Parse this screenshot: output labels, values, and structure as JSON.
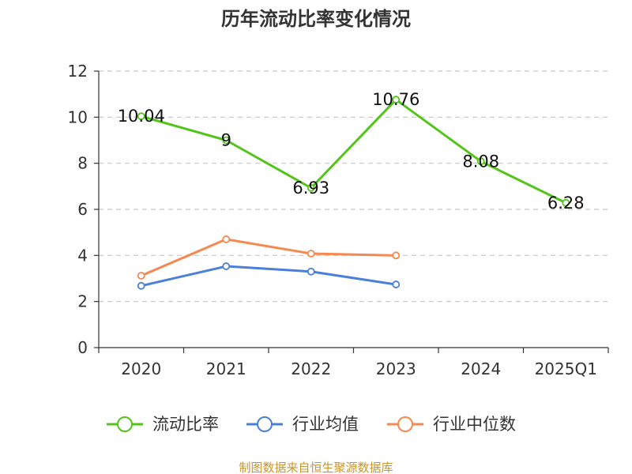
{
  "chart_data": {
    "type": "line",
    "title": "历年流动比率变化情况",
    "categories": [
      "2020",
      "2021",
      "2022",
      "2023",
      "2024",
      "2025Q1"
    ],
    "ylim": [
      0,
      12
    ],
    "yticks": [
      0,
      2,
      4,
      6,
      8,
      10,
      12
    ],
    "grid": true,
    "legend_position": "bottom",
    "series": [
      {
        "name": "流动比率",
        "color": "#52c41a",
        "values": [
          10.04,
          9,
          6.93,
          10.76,
          8.08,
          6.28
        ],
        "labels": [
          "10.04",
          "9",
          "6.93",
          "10.76",
          "8.08",
          "6.28"
        ]
      },
      {
        "name": "行业均值",
        "color": "#4a7fdb",
        "values": [
          2.68,
          3.53,
          3.3,
          2.74,
          null,
          null
        ]
      },
      {
        "name": "行业中位数",
        "color": "#f5894f",
        "values": [
          3.12,
          4.7,
          4.08,
          4.0,
          null,
          null
        ]
      }
    ]
  },
  "source_text": "制图数据来自恒生聚源数据库",
  "source_color": "#c8952c"
}
